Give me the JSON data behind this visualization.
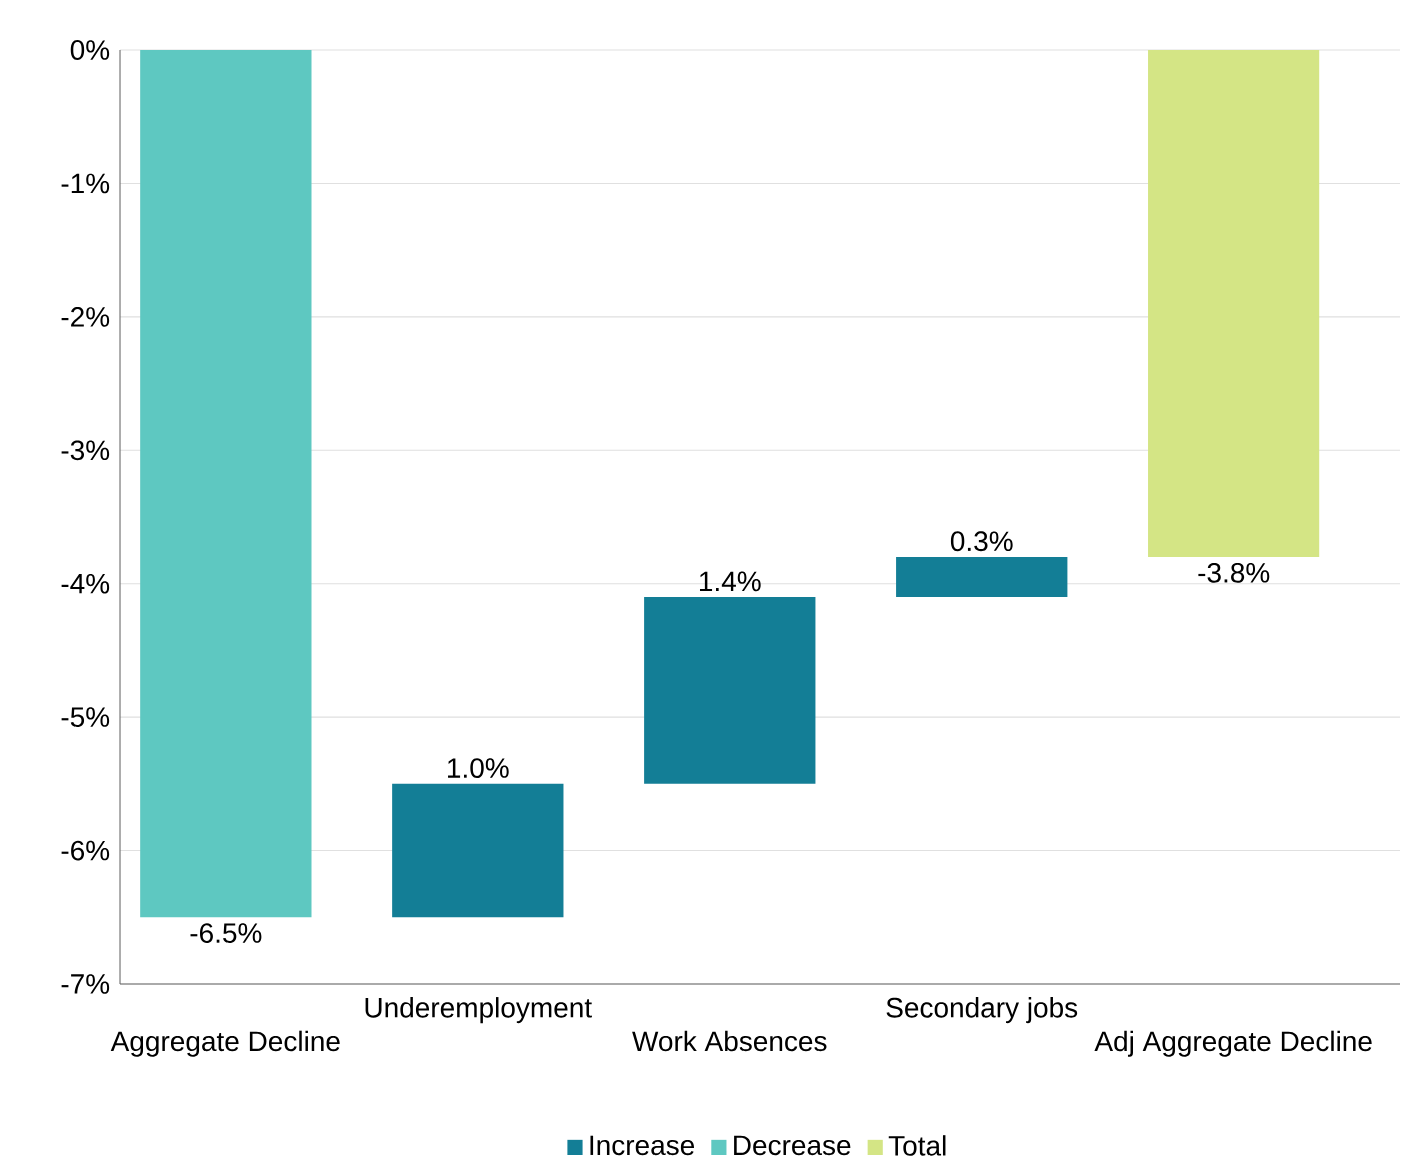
{
  "chart_data": {
    "type": "bar",
    "categories": [
      "Aggregate Decline",
      "Underemployment",
      "Work Absences",
      "Secondary jobs",
      "Adj Aggregate Decline"
    ],
    "series": [
      {
        "name": "Increase",
        "color": "#137e96",
        "base": [
          null,
          -6.5,
          -5.5,
          -4.1,
          null
        ],
        "values": [
          null,
          1.0,
          1.4,
          0.3,
          null
        ],
        "value_labels": [
          null,
          "1.0%",
          "1.4%",
          "0.3%",
          null
        ]
      },
      {
        "name": "Decrease",
        "color": "#5ec8c1",
        "base": [
          0,
          null,
          null,
          null,
          null
        ],
        "values": [
          -6.5,
          null,
          null,
          null,
          null
        ],
        "value_labels": [
          "-6.5%",
          null,
          null,
          null,
          null
        ]
      },
      {
        "name": "Total",
        "color": "#d4e585",
        "base": [
          null,
          null,
          null,
          null,
          0
        ],
        "values": [
          null,
          null,
          null,
          null,
          -3.8
        ],
        "value_labels": [
          null,
          null,
          null,
          null,
          "-3.8%"
        ]
      }
    ],
    "ylim": [
      -7,
      0
    ],
    "yticks": [
      {
        "value": 0,
        "label": "0%"
      },
      {
        "value": -1,
        "label": "-1%"
      },
      {
        "value": -2,
        "label": "-2%"
      },
      {
        "value": -3,
        "label": "-3%"
      },
      {
        "value": -4,
        "label": "-4%"
      },
      {
        "value": -5,
        "label": "-5%"
      },
      {
        "value": -6,
        "label": "-6%"
      },
      {
        "value": -7,
        "label": "-7%"
      }
    ],
    "grid": "y",
    "legend": "bottom"
  }
}
